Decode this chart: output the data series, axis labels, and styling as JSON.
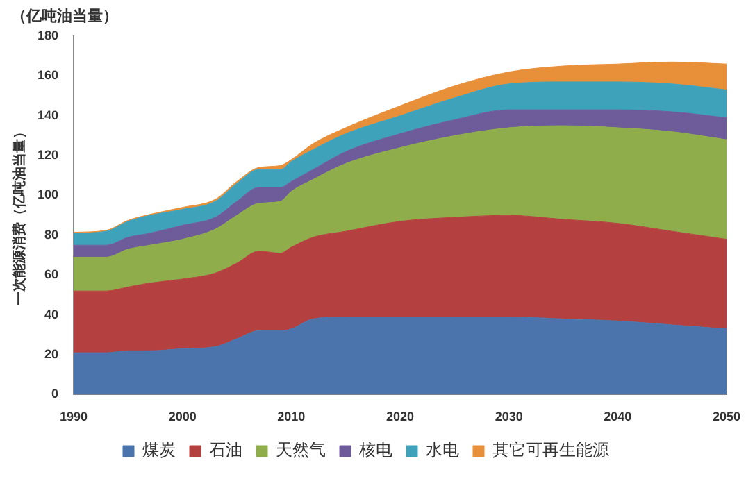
{
  "chart_data": {
    "type": "area",
    "stacked": true,
    "ylabel": "一次能源消费（亿吨油当量）",
    "annotations": [
      "（亿吨油当量）"
    ],
    "x": [
      1990,
      1993,
      1995,
      1997,
      2000,
      2003,
      2005,
      2007,
      2009,
      2010,
      2012,
      2015,
      2020,
      2025,
      2030,
      2035,
      2040,
      2045,
      2050
    ],
    "series": [
      {
        "name": "煤炭",
        "color": "#4a74ab",
        "values": [
          21,
          21,
          22,
          22,
          23,
          24,
          28,
          32,
          32,
          33,
          38,
          39,
          39,
          39,
          39,
          38,
          37,
          35,
          33
        ]
      },
      {
        "name": "石油",
        "color": "#b4413f",
        "values": [
          31,
          31,
          32,
          34,
          35,
          37,
          38,
          40,
          39,
          41,
          41,
          43,
          48,
          50,
          51,
          50,
          49,
          47,
          45
        ]
      },
      {
        "name": "天然气",
        "color": "#8fad4b",
        "values": [
          17,
          17,
          19,
          19,
          20,
          22,
          24,
          24,
          26,
          28,
          29,
          34,
          37,
          41,
          44,
          47,
          48,
          50,
          50
        ]
      },
      {
        "name": "核电",
        "color": "#6e5b9a",
        "values": [
          6,
          6,
          6,
          6,
          7,
          6,
          7,
          8,
          7,
          5,
          5,
          6,
          7,
          8,
          9,
          8,
          9,
          10,
          11
        ]
      },
      {
        "name": "水电",
        "color": "#3ea2bb",
        "values": [
          6,
          7,
          8,
          9,
          8,
          8,
          9,
          9,
          9,
          10,
          10,
          9,
          9,
          11,
          13,
          14,
          14,
          14,
          14
        ]
      },
      {
        "name": "其它可再生能源",
        "color": "#e88f3a",
        "values": [
          0.5,
          0.5,
          0.5,
          0.5,
          1,
          1,
          1,
          1,
          2,
          1,
          3,
          3,
          5,
          6,
          6,
          8,
          9,
          11,
          13
        ]
      }
    ],
    "xlim": [
      1990,
      2050
    ],
    "xticks": [
      1990,
      2000,
      2010,
      2020,
      2030,
      2040,
      2050
    ],
    "ylim": [
      0,
      180
    ],
    "yticks": [
      0,
      20,
      40,
      60,
      80,
      100,
      120,
      140,
      160,
      180
    ],
    "grid": false,
    "legend": "bottom"
  }
}
